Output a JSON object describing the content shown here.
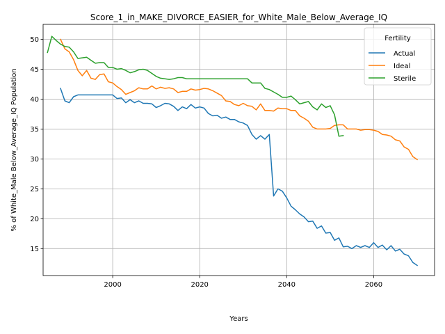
{
  "chart_data": {
    "type": "line",
    "title": "Score_1_in_MAKE_DIVORCE_EASIER_for_White_Male_Below_Average_IQ",
    "xlabel": "Years",
    "ylabel": "% of White_Male Below_Average_IQ Population",
    "xlim": [
      1984,
      2074
    ],
    "ylim": [
      10.5,
      52.5
    ],
    "xticks": [
      2000,
      2020,
      2040,
      2060
    ],
    "yticks": [
      15,
      20,
      25,
      30,
      35,
      40,
      45,
      50
    ],
    "grid": true,
    "legend": {
      "title": "Fertility",
      "placement": "top-right"
    },
    "series": [
      {
        "name": "Actual",
        "color": "#1f77b4",
        "x": [
          1988,
          1989,
          1990,
          1991,
          1992,
          1993,
          1994,
          1995,
          1996,
          1997,
          1998,
          1999,
          2000,
          2001,
          2002,
          2003,
          2004,
          2005,
          2006,
          2007,
          2008,
          2009,
          2010,
          2011,
          2012,
          2013,
          2014,
          2015,
          2016,
          2017,
          2018,
          2019,
          2020,
          2021,
          2022,
          2023,
          2024,
          2025,
          2026,
          2027,
          2028,
          2029,
          2030,
          2031,
          2032,
          2033,
          2034,
          2035,
          2036,
          2037,
          2038,
          2039,
          2040,
          2041,
          2042,
          2043,
          2044,
          2045,
          2046,
          2047,
          2048,
          2049,
          2050,
          2051,
          2052,
          2053,
          2054,
          2055,
          2056,
          2057,
          2058,
          2059,
          2060,
          2061,
          2062,
          2063,
          2064,
          2065,
          2066,
          2067,
          2068,
          2069,
          2070
        ],
        "y": [
          41.8,
          39.7,
          39.4,
          40.4,
          40.7,
          40.7,
          40.7,
          40.7,
          40.7,
          40.7,
          40.7,
          40.7,
          40.7,
          40.1,
          40.2,
          39.4,
          39.9,
          39.4,
          39.7,
          39.3,
          39.3,
          39.2,
          38.6,
          38.9,
          39.3,
          39.2,
          38.8,
          38.1,
          38.7,
          38.4,
          39.1,
          38.5,
          38.7,
          38.5,
          37.6,
          37.2,
          37.3,
          36.8,
          37.0,
          36.6,
          36.6,
          36.2,
          36.0,
          35.6,
          34.1,
          33.3,
          33.9,
          33.3,
          34.1,
          23.8,
          25.0,
          24.6,
          23.5,
          22.1,
          21.5,
          20.8,
          20.3,
          19.5,
          19.6,
          18.4,
          18.8,
          17.6,
          17.7,
          16.4,
          16.8,
          15.3,
          15.4,
          15.0,
          15.5,
          15.2,
          15.5,
          15.2,
          16.0,
          15.2,
          15.6,
          14.8,
          15.5,
          14.6,
          14.9,
          14.1,
          13.8,
          12.7,
          12.2
        ]
      },
      {
        "name": "Ideal",
        "color": "#ff7f0e",
        "x": [
          1988,
          1989,
          1990,
          1991,
          1992,
          1993,
          1994,
          1995,
          1996,
          1997,
          1998,
          1999,
          2000,
          2001,
          2002,
          2003,
          2004,
          2005,
          2006,
          2007,
          2008,
          2009,
          2010,
          2011,
          2012,
          2013,
          2014,
          2015,
          2016,
          2017,
          2018,
          2019,
          2020,
          2021,
          2022,
          2023,
          2024,
          2025,
          2026,
          2027,
          2028,
          2029,
          2030,
          2031,
          2032,
          2033,
          2034,
          2035,
          2036,
          2037,
          2038,
          2039,
          2040,
          2041,
          2042,
          2043,
          2044,
          2045,
          2046,
          2047,
          2048,
          2049,
          2050,
          2051,
          2052,
          2053,
          2054,
          2055,
          2056,
          2057,
          2058,
          2059,
          2060,
          2061,
          2062,
          2063,
          2064,
          2065,
          2066,
          2067,
          2068,
          2069,
          2070
        ],
        "y": [
          50.0,
          48.4,
          47.9,
          46.6,
          44.8,
          43.9,
          44.8,
          43.5,
          43.3,
          44.1,
          44.2,
          42.9,
          42.7,
          42.1,
          41.6,
          40.8,
          41.1,
          41.4,
          41.9,
          41.7,
          41.7,
          42.2,
          41.7,
          42.0,
          41.8,
          41.9,
          41.7,
          41.1,
          41.3,
          41.3,
          41.7,
          41.5,
          41.6,
          41.8,
          41.7,
          41.4,
          41.0,
          40.6,
          39.7,
          39.6,
          39.1,
          38.9,
          39.3,
          38.9,
          38.8,
          38.2,
          39.2,
          38.1,
          38.1,
          38.0,
          38.5,
          38.4,
          38.4,
          38.1,
          38.1,
          37.2,
          36.8,
          36.3,
          35.3,
          35.0,
          35.0,
          35.0,
          35.1,
          35.6,
          35.7,
          35.7,
          35.0,
          35.0,
          35.0,
          34.8,
          34.9,
          34.9,
          34.8,
          34.6,
          34.1,
          34.0,
          33.8,
          33.2,
          33.0,
          32.0,
          31.6,
          30.4,
          29.9
        ]
      },
      {
        "name": "Sterile",
        "color": "#2ca02c",
        "x": [
          1985,
          1986,
          1987,
          1988,
          1989,
          1990,
          1991,
          1992,
          1993,
          1994,
          1995,
          1996,
          1997,
          1998,
          1999,
          2000,
          2001,
          2002,
          2003,
          2004,
          2005,
          2006,
          2007,
          2008,
          2009,
          2010,
          2011,
          2012,
          2013,
          2014,
          2015,
          2016,
          2017,
          2018,
          2019,
          2020,
          2021,
          2022,
          2023,
          2024,
          2025,
          2026,
          2027,
          2028,
          2029,
          2030,
          2031,
          2032,
          2033,
          2034,
          2035,
          2036,
          2037,
          2038,
          2039,
          2040,
          2041,
          2042,
          2043,
          2044,
          2045,
          2046,
          2047,
          2048,
          2049,
          2050,
          2051,
          2052,
          2053
        ],
        "y": [
          47.8,
          50.5,
          49.8,
          49.2,
          48.8,
          48.7,
          47.9,
          46.8,
          46.9,
          47.0,
          46.5,
          46.0,
          46.1,
          46.1,
          45.3,
          45.3,
          45.0,
          45.1,
          44.8,
          44.4,
          44.6,
          44.9,
          45.0,
          44.8,
          44.3,
          43.8,
          43.5,
          43.4,
          43.3,
          43.4,
          43.6,
          43.6,
          43.4,
          43.4,
          43.4,
          43.4,
          43.4,
          43.4,
          43.4,
          43.4,
          43.4,
          43.4,
          43.4,
          43.4,
          43.4,
          43.4,
          43.4,
          42.7,
          42.7,
          42.7,
          41.8,
          41.6,
          41.2,
          40.8,
          40.3,
          40.3,
          40.5,
          39.9,
          39.2,
          39.4,
          39.6,
          38.7,
          38.2,
          39.2,
          38.6,
          38.9,
          37.4,
          33.8,
          33.9
        ]
      }
    ]
  }
}
